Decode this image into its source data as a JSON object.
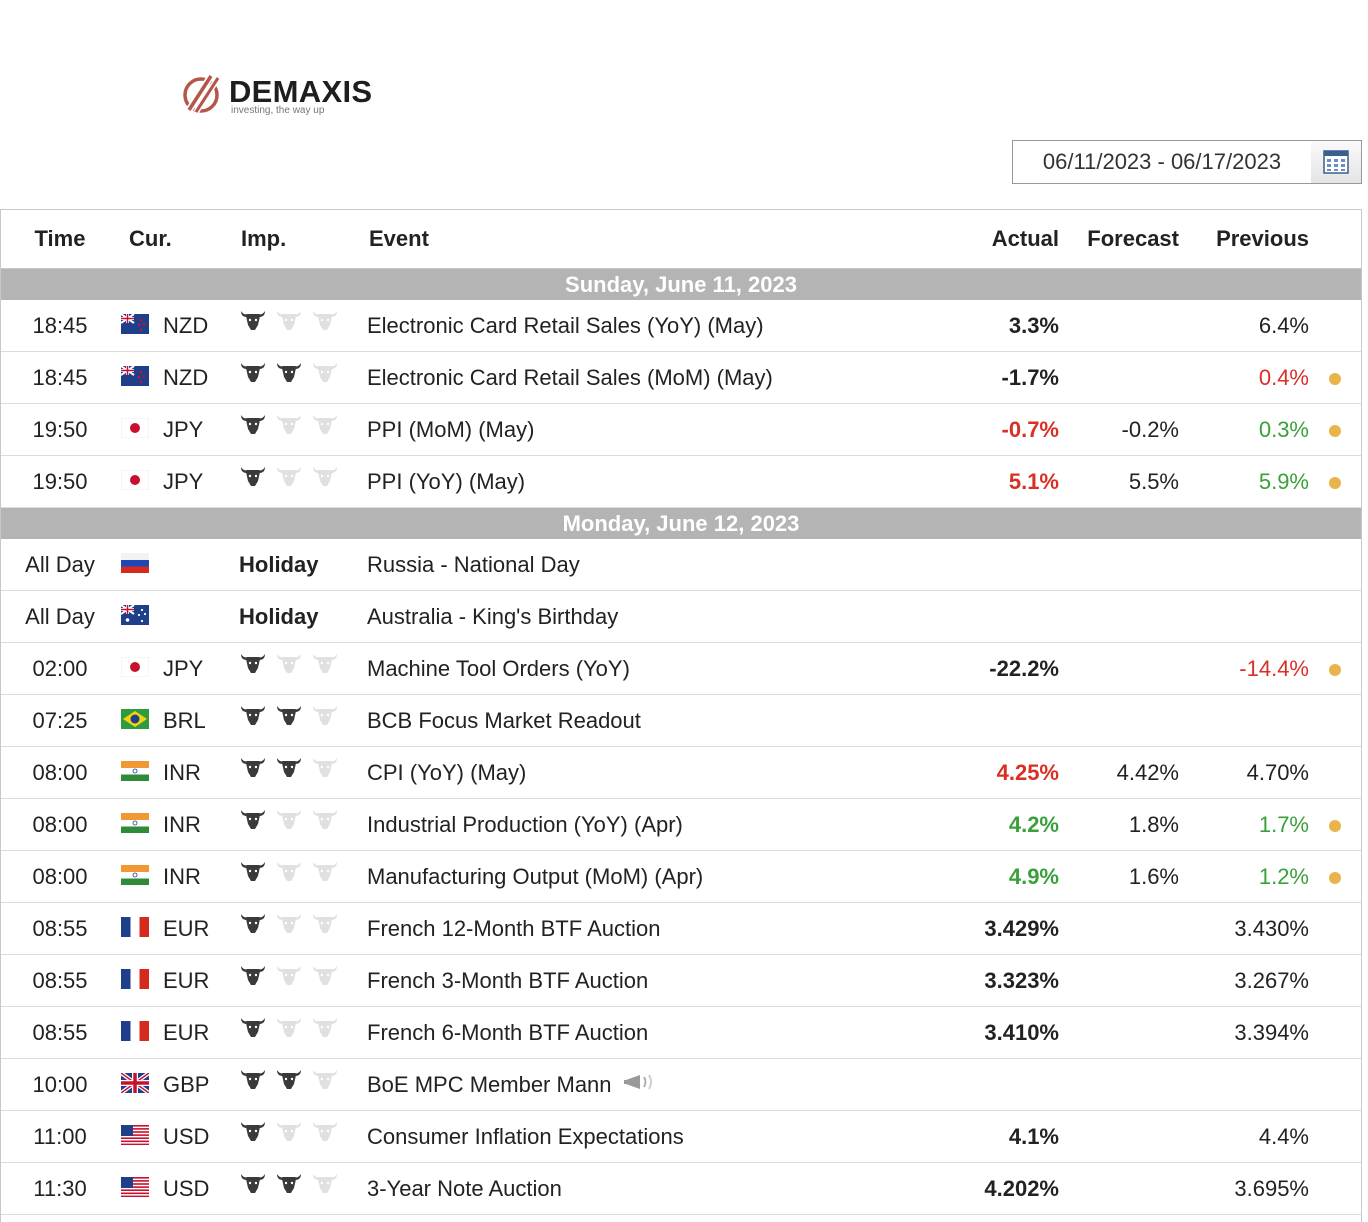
{
  "brand": {
    "name": "DEMAXIS",
    "tagline": "investing, the way up",
    "color": "#b5564a"
  },
  "date_range": {
    "value": "06/11/2023 - 06/17/2023",
    "icon": "calendar-icon"
  },
  "columns": {
    "time": "Time",
    "cur": "Cur.",
    "imp": "Imp.",
    "event": "Event",
    "actual": "Actual",
    "forecast": "Forecast",
    "previous": "Previous"
  },
  "colors": {
    "positive": "#3aa13a",
    "negative": "#d93025",
    "revised_dot": "#e9b44c",
    "day_header_bg": "#b4b4b4"
  },
  "days": [
    {
      "label": "Sunday, June 11, 2023",
      "events": [
        {
          "time": "18:45",
          "flag": "nz",
          "cur": "NZD",
          "imp": 1,
          "event": "Electronic Card Retail Sales (YoY) (May)",
          "actual": "3.3%",
          "actual_color": "",
          "forecast": "",
          "previous": "6.4%",
          "previous_color": "",
          "revised": false
        },
        {
          "time": "18:45",
          "flag": "nz",
          "cur": "NZD",
          "imp": 2,
          "event": "Electronic Card Retail Sales (MoM) (May)",
          "actual": "-1.7%",
          "actual_color": "",
          "forecast": "",
          "previous": "0.4%",
          "previous_color": "red",
          "revised": true
        },
        {
          "time": "19:50",
          "flag": "jp",
          "cur": "JPY",
          "imp": 1,
          "event": "PPI (MoM) (May)",
          "actual": "-0.7%",
          "actual_color": "red",
          "forecast": "-0.2%",
          "previous": "0.3%",
          "previous_color": "green",
          "revised": true
        },
        {
          "time": "19:50",
          "flag": "jp",
          "cur": "JPY",
          "imp": 1,
          "event": "PPI (YoY) (May)",
          "actual": "5.1%",
          "actual_color": "red",
          "forecast": "5.5%",
          "previous": "5.9%",
          "previous_color": "green",
          "revised": true
        }
      ]
    },
    {
      "label": "Monday, June 12, 2023",
      "events": [
        {
          "time": "All Day",
          "flag": "ru",
          "cur": "",
          "holiday": "Holiday",
          "event": "Russia - National Day",
          "actual": "",
          "forecast": "",
          "previous": "",
          "revised": false
        },
        {
          "time": "All Day",
          "flag": "au",
          "cur": "",
          "holiday": "Holiday",
          "event": "Australia - King's Birthday",
          "actual": "",
          "forecast": "",
          "previous": "",
          "revised": false
        },
        {
          "time": "02:00",
          "flag": "jp",
          "cur": "JPY",
          "imp": 1,
          "event": "Machine Tool Orders (YoY)",
          "actual": "-22.2%",
          "actual_color": "",
          "forecast": "",
          "previous": "-14.4%",
          "previous_color": "red",
          "revised": true
        },
        {
          "time": "07:25",
          "flag": "br",
          "cur": "BRL",
          "imp": 2,
          "event": "BCB Focus Market Readout",
          "actual": "",
          "forecast": "",
          "previous": "",
          "revised": false
        },
        {
          "time": "08:00",
          "flag": "in",
          "cur": "INR",
          "imp": 2,
          "event": "CPI (YoY) (May)",
          "actual": "4.25%",
          "actual_color": "red",
          "forecast": "4.42%",
          "previous": "4.70%",
          "previous_color": "",
          "revised": false
        },
        {
          "time": "08:00",
          "flag": "in",
          "cur": "INR",
          "imp": 1,
          "event": "Industrial Production (YoY) (Apr)",
          "actual": "4.2%",
          "actual_color": "green",
          "forecast": "1.8%",
          "previous": "1.7%",
          "previous_color": "green",
          "revised": true
        },
        {
          "time": "08:00",
          "flag": "in",
          "cur": "INR",
          "imp": 1,
          "event": "Manufacturing Output (MoM) (Apr)",
          "actual": "4.9%",
          "actual_color": "green",
          "forecast": "1.6%",
          "previous": "1.2%",
          "previous_color": "green",
          "revised": true
        },
        {
          "time": "08:55",
          "flag": "fr",
          "cur": "EUR",
          "imp": 1,
          "event": "French 12-Month BTF Auction",
          "actual": "3.429%",
          "actual_color": "",
          "forecast": "",
          "previous": "3.430%",
          "previous_color": "",
          "revised": false
        },
        {
          "time": "08:55",
          "flag": "fr",
          "cur": "EUR",
          "imp": 1,
          "event": "French 3-Month BTF Auction",
          "actual": "3.323%",
          "actual_color": "",
          "forecast": "",
          "previous": "3.267%",
          "previous_color": "",
          "revised": false
        },
        {
          "time": "08:55",
          "flag": "fr",
          "cur": "EUR",
          "imp": 1,
          "event": "French 6-Month BTF Auction",
          "actual": "3.410%",
          "actual_color": "",
          "forecast": "",
          "previous": "3.394%",
          "previous_color": "",
          "revised": false
        },
        {
          "time": "10:00",
          "flag": "gb",
          "cur": "GBP",
          "imp": 2,
          "event": "BoE MPC Member Mann",
          "speech": true,
          "actual": "",
          "forecast": "",
          "previous": "",
          "revised": false
        },
        {
          "time": "11:00",
          "flag": "us",
          "cur": "USD",
          "imp": 1,
          "event": "Consumer Inflation Expectations",
          "actual": "4.1%",
          "actual_color": "",
          "forecast": "",
          "previous": "4.4%",
          "previous_color": "",
          "revised": false
        },
        {
          "time": "11:30",
          "flag": "us",
          "cur": "USD",
          "imp": 2,
          "event": "3-Year Note Auction",
          "actual": "4.202%",
          "actual_color": "",
          "forecast": "",
          "previous": "3.695%",
          "previous_color": "",
          "revised": false
        }
      ]
    }
  ]
}
